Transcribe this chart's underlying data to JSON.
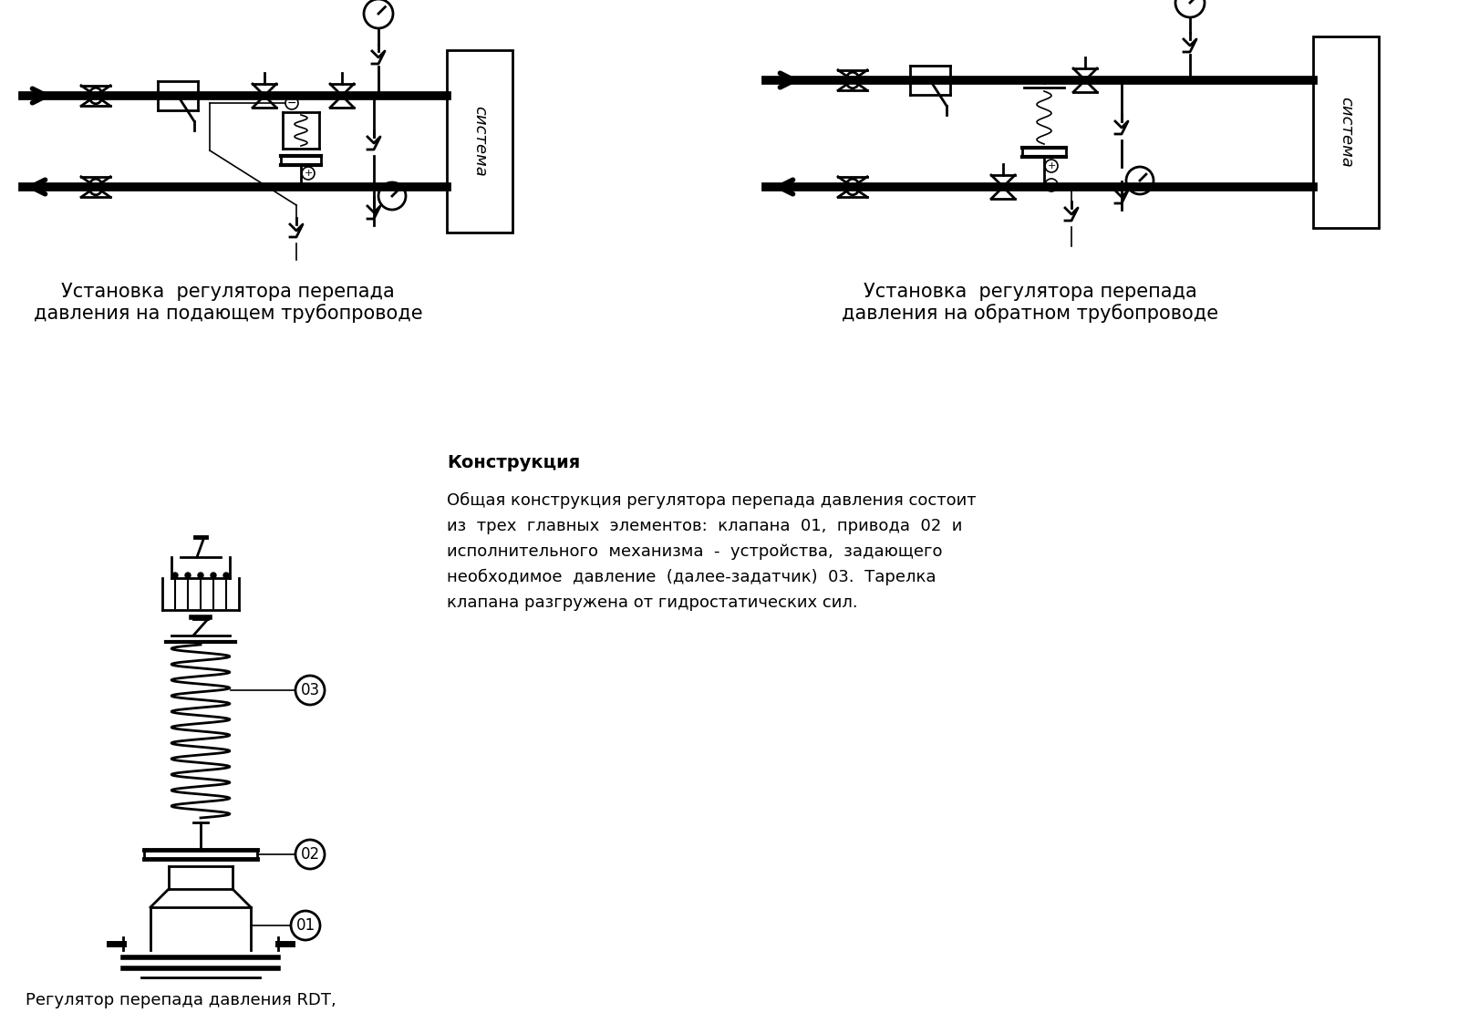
{
  "background_color": "#ffffff",
  "line_color": "#000000",
  "title1": "Установка  регулятора перепада\nдавления на подающем трубопроводе",
  "title2": "Установка  регулятора перепада\nдавления на обратном трубопроводе",
  "label_construction": "Конструкция",
  "label_bottom": "Регулятор перепада давления RDT,",
  "text_body_line1": "Общая конструкция регулятора перепада давления состоит",
  "text_body_line2": "из  трех  главных  элементов:  клапана  ",
  "text_body_bold1": "01",
  "text_body_line3": ",  привода  ",
  "text_body_bold2": "02",
  "text_body_line4": "  и",
  "text_body_line5": "исполнительного  механизма  -  устройства,  задающего",
  "text_body_line6": "необходимое  давление  (далее-задатчик)  ",
  "text_body_bold3": "03",
  "text_body_line7": ".  Тарелка",
  "text_body_line8": "клапана разгружена от гидростатических сил.",
  "label_sistema": "система",
  "label_01": "01",
  "label_02": "02",
  "label_03": "03",
  "pipe_lw": 7,
  "thin_lw": 1.2,
  "med_lw": 2.0
}
